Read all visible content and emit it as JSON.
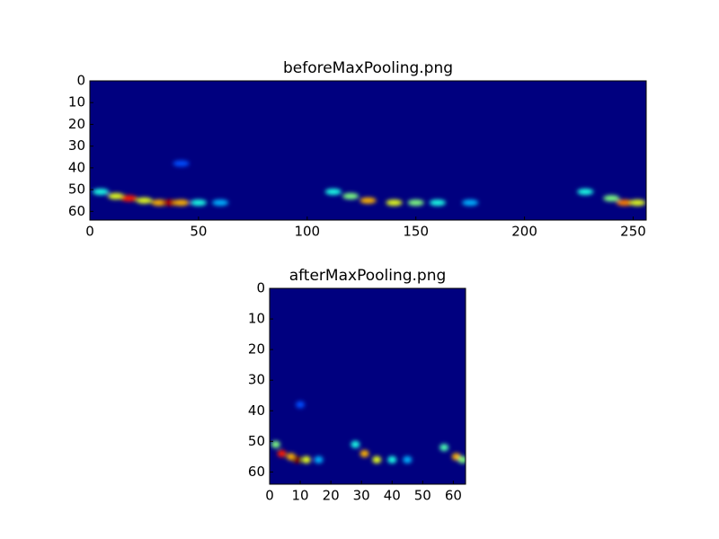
{
  "chart_data": [
    {
      "type": "image",
      "title": "beforeMaxPooling.png",
      "background": "#00007f",
      "xlim": [
        0,
        256
      ],
      "ylim": [
        0,
        64
      ],
      "invert_y": true,
      "xticks": [
        0,
        50,
        100,
        150,
        200,
        250
      ],
      "yticks": [
        0,
        10,
        20,
        30,
        40,
        50,
        60
      ],
      "x": [
        5,
        12,
        18,
        25,
        32,
        37,
        42,
        50,
        60,
        42,
        112,
        120,
        128,
        140,
        150,
        160,
        175,
        228,
        240,
        246,
        252
      ],
      "y": [
        51,
        53,
        54,
        55,
        56,
        56,
        56,
        56,
        56,
        38,
        51,
        53,
        55,
        56,
        56,
        56,
        56,
        51,
        54,
        56,
        56
      ],
      "values": [
        0.4,
        0.6,
        0.85,
        0.6,
        0.7,
        0.95,
        0.7,
        0.4,
        0.3,
        0.2,
        0.4,
        0.5,
        0.7,
        0.6,
        0.5,
        0.4,
        0.3,
        0.4,
        0.5,
        0.75,
        0.6
      ]
    },
    {
      "type": "image",
      "title": "afterMaxPooling.png",
      "background": "#00007f",
      "xlim": [
        0,
        64
      ],
      "ylim": [
        0,
        64
      ],
      "invert_y": true,
      "xticks": [
        0,
        10,
        20,
        30,
        40,
        50,
        60
      ],
      "yticks": [
        0,
        10,
        20,
        30,
        40,
        50,
        60
      ],
      "x": [
        2,
        4,
        7,
        9,
        12,
        16,
        10,
        28,
        31,
        35,
        40,
        45,
        57,
        61,
        63
      ],
      "y": [
        51,
        54,
        55,
        56,
        56,
        56,
        38,
        51,
        54,
        56,
        56,
        56,
        52,
        55,
        56
      ],
      "values": [
        0.5,
        0.85,
        0.7,
        1.0,
        0.6,
        0.3,
        0.2,
        0.4,
        0.7,
        0.6,
        0.4,
        0.3,
        0.45,
        0.7,
        0.5
      ]
    }
  ]
}
